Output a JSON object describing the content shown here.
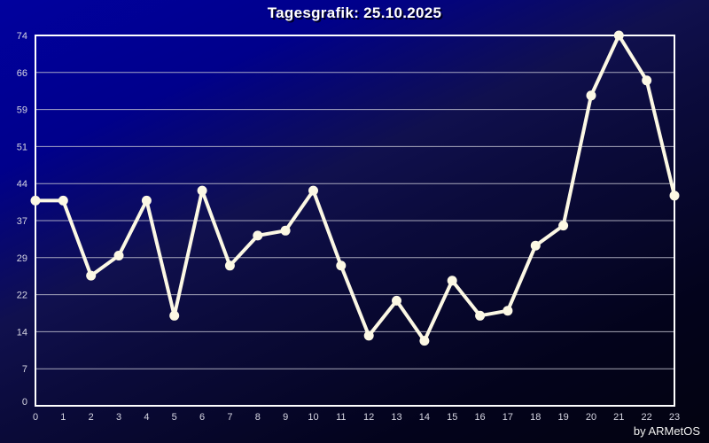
{
  "title": "Tagesgrafik: 25.10.2025",
  "footer": "by ARMetOS",
  "colors": {
    "line": "#fcf8e4",
    "marker": "#fcf8e4",
    "grid": "#c4c4d2",
    "frame": "#ffffff",
    "title_text": "#ffffff",
    "tick_text": "#d6d6e2",
    "background_top": "#00008b",
    "background_bottom": "#030310"
  },
  "chart_data": {
    "type": "line",
    "title": "Tagesgrafik: 25.10.2025",
    "x": [
      0,
      1,
      2,
      3,
      4,
      5,
      6,
      7,
      8,
      9,
      10,
      11,
      12,
      13,
      14,
      15,
      16,
      17,
      18,
      19,
      20,
      21,
      22,
      23
    ],
    "values": [
      41,
      41,
      26,
      30,
      41,
      18,
      43,
      28,
      34,
      35,
      43,
      28,
      14,
      21,
      13,
      25,
      18,
      19,
      32,
      36,
      62,
      74,
      65,
      42
    ],
    "ylim": [
      0,
      74
    ],
    "y_tick_labels": [
      "74",
      "66",
      "59",
      "51",
      "44",
      "37",
      "29",
      "22",
      "14",
      "7",
      "0"
    ],
    "x_tick_labels": [
      "0",
      "1",
      "2",
      "3",
      "4",
      "5",
      "6",
      "7",
      "8",
      "9",
      "10",
      "11",
      "12",
      "13",
      "14",
      "15",
      "16",
      "17",
      "18",
      "19",
      "20",
      "21",
      "22",
      "23"
    ],
    "xlabel": "",
    "ylabel": "",
    "grid": "horizontal",
    "legend": "none",
    "marker": "circle",
    "annotation": "by ARMetOS"
  }
}
